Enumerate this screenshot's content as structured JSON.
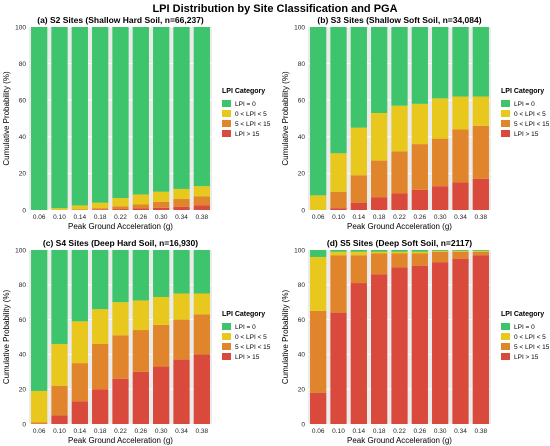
{
  "figure": {
    "title": "LPI Distribution by Site Classification and PGA"
  },
  "legend": {
    "title": "LPI Category",
    "entries": [
      "LPI = 0",
      "0 < LPI < 5",
      "5 < LPI < 15",
      "LPI > 15"
    ]
  },
  "colors": {
    "lpi_0": "#3ec46d",
    "lpi_0_5": "#e8c81c",
    "lpi_5_15": "#e0852b",
    "lpi_gt_15": "#d9493c",
    "panel_bg": "#ebebeb",
    "grid": "#ffffff"
  },
  "chart_data": [
    {
      "type": "bar",
      "stacked": true,
      "title": "(a) S2 Sites (Shallow Hard Soil, n=66,237)",
      "xlabel": "Peak Ground Acceleration (g)",
      "ylabel": "Cumulative Probability (%)",
      "ylim": [
        0,
        100
      ],
      "yticks": [
        "0",
        "20",
        "40",
        "60",
        "80",
        "100"
      ],
      "grid": true,
      "legend_position": "right",
      "categories": [
        "0.06",
        "0.10",
        "0.14",
        "0.18",
        "0.22",
        "0.26",
        "0.30",
        "0.34",
        "0.38"
      ],
      "series": [
        {
          "name": "LPI > 15",
          "values": [
            0,
            0,
            0,
            0.2,
            0.5,
            0.8,
            1.2,
            1.8,
            2.5
          ]
        },
        {
          "name": "5 < LPI < 15",
          "values": [
            0,
            0,
            0.3,
            0.8,
            1.5,
            2.2,
            3.2,
            4.2,
            5
          ]
        },
        {
          "name": "0 < LPI < 5",
          "values": [
            0,
            1,
            2.2,
            3,
            4.5,
            5.5,
            5.6,
            5.5,
            5.5
          ]
        },
        {
          "name": "LPI = 0",
          "values": [
            100,
            99,
            97.5,
            96,
            93.5,
            91.5,
            90,
            88.5,
            87
          ]
        }
      ]
    },
    {
      "type": "bar",
      "stacked": true,
      "title": "(b) S3 Sites (Shallow Soft Soil, n=34,084)",
      "xlabel": "Peak Ground Acceleration (g)",
      "ylabel": "Cumulative Probability (%)",
      "ylim": [
        0,
        100
      ],
      "yticks": [
        "0",
        "20",
        "40",
        "60",
        "80",
        "100"
      ],
      "grid": true,
      "legend_position": "right",
      "categories": [
        "0.06",
        "0.10",
        "0.14",
        "0.18",
        "0.22",
        "0.26",
        "0.30",
        "0.34",
        "0.38"
      ],
      "series": [
        {
          "name": "LPI > 15",
          "values": [
            0,
            1,
            4,
            7,
            9,
            11,
            13,
            15,
            17
          ]
        },
        {
          "name": "5 < LPI < 15",
          "values": [
            0,
            9,
            15,
            20,
            23,
            25,
            26,
            29,
            29
          ]
        },
        {
          "name": "0 < LPI < 5",
          "values": [
            8,
            21,
            26,
            26,
            25,
            22,
            22,
            18,
            16
          ]
        },
        {
          "name": "LPI = 0",
          "values": [
            92,
            69,
            55,
            47,
            43,
            42,
            39,
            38,
            38
          ]
        }
      ]
    },
    {
      "type": "bar",
      "stacked": true,
      "title": "(c) S4 Sites (Deep Hard Soil, n=16,930)",
      "xlabel": "Peak Ground Acceleration (g)",
      "ylabel": "Cumulative Probability (%)",
      "ylim": [
        0,
        100
      ],
      "yticks": [
        "0",
        "20",
        "40",
        "60",
        "80",
        "100"
      ],
      "grid": true,
      "legend_position": "right",
      "categories": [
        "0.06",
        "0.10",
        "0.14",
        "0.18",
        "0.22",
        "0.26",
        "0.30",
        "0.34",
        "0.38"
      ],
      "series": [
        {
          "name": "LPI > 15",
          "values": [
            0,
            5,
            13,
            20,
            26,
            30,
            33,
            37,
            40
          ]
        },
        {
          "name": "5 < LPI < 15",
          "values": [
            1,
            17,
            22,
            26,
            25,
            24,
            24,
            23,
            23
          ]
        },
        {
          "name": "0 < LPI < 5",
          "values": [
            18,
            24,
            24,
            20,
            19,
            17,
            16,
            15,
            12
          ]
        },
        {
          "name": "LPI = 0",
          "values": [
            81,
            54,
            41,
            34,
            30,
            29,
            27,
            25,
            25
          ]
        }
      ]
    },
    {
      "type": "bar",
      "stacked": true,
      "title": "(d) S5 Sites (Deep Soft Soil, n=2117)",
      "xlabel": "Peak Ground Acceleration (g)",
      "ylabel": "Cumulative Probability (%)",
      "ylim": [
        0,
        100
      ],
      "yticks": [
        "0",
        "20",
        "40",
        "60",
        "80",
        "100"
      ],
      "grid": true,
      "legend_position": "right",
      "categories": [
        "0.06",
        "0.10",
        "0.14",
        "0.18",
        "0.22",
        "0.26",
        "0.30",
        "0.34",
        "0.38"
      ],
      "series": [
        {
          "name": "LPI > 15",
          "values": [
            18,
            64,
            81,
            86,
            90,
            91,
            93,
            95,
            97
          ]
        },
        {
          "name": "5 < LPI < 15",
          "values": [
            47,
            33,
            16,
            12,
            8,
            7,
            6,
            4,
            2
          ]
        },
        {
          "name": "0 < LPI < 5",
          "values": [
            31,
            2,
            2,
            1,
            1,
            1,
            0.5,
            0.5,
            0.5
          ]
        },
        {
          "name": "LPI = 0",
          "values": [
            4,
            1,
            1,
            1,
            1,
            1,
            0.5,
            0.5,
            0.5
          ]
        }
      ]
    }
  ]
}
